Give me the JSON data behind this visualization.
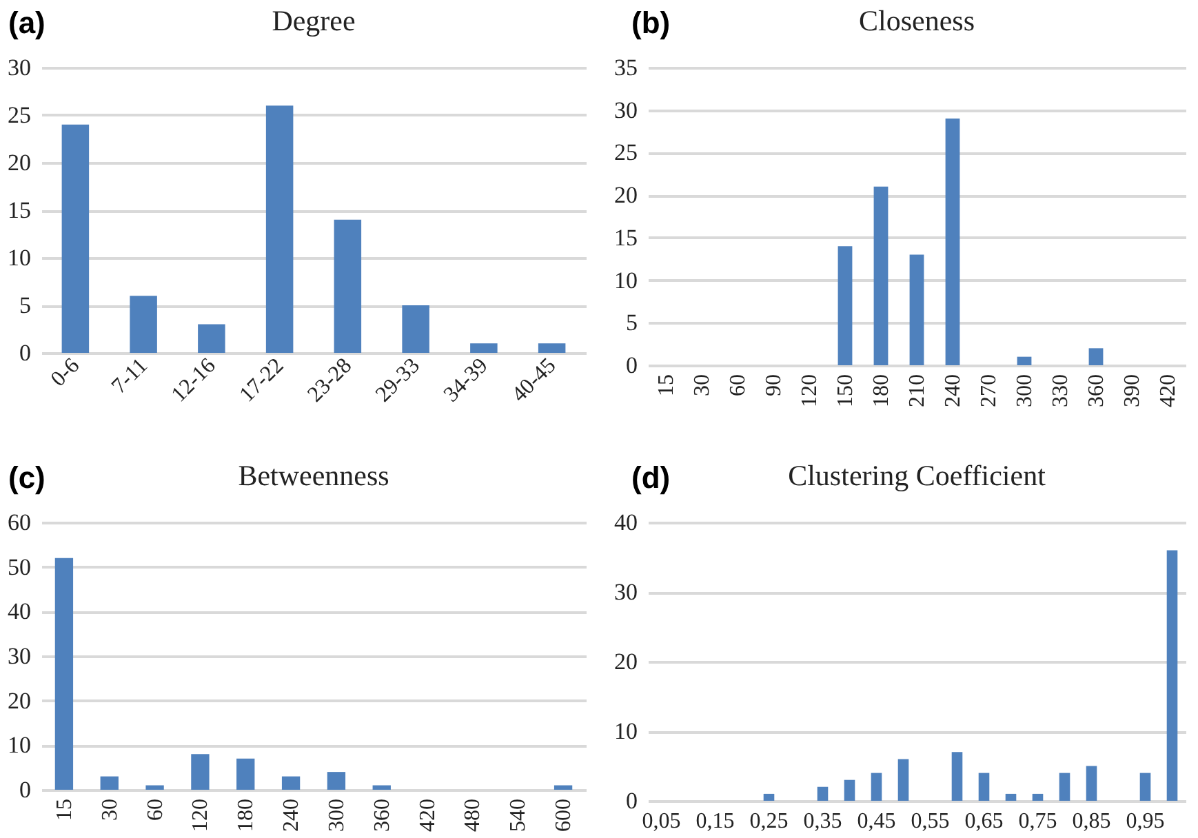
{
  "chart_data": [
    {
      "type": "bar",
      "title": "Degree",
      "annotations": [
        "(a)"
      ],
      "categories": [
        "0-6",
        "7-11",
        "12-16",
        "17-22",
        "23-28",
        "29-33",
        "34-39",
        "40-45"
      ],
      "values": [
        24,
        6,
        3,
        26,
        14,
        5,
        1,
        1
      ],
      "color": "#4f81bd",
      "ylim": [
        0,
        30
      ],
      "yticks": [
        0,
        5,
        10,
        15,
        20,
        25,
        30
      ],
      "grid": "y"
    },
    {
      "type": "bar",
      "title": "Closeness",
      "annotations": [
        "(b)"
      ],
      "categories": [
        "15",
        "30",
        "60",
        "90",
        "120",
        "150",
        "180",
        "210",
        "240",
        "270",
        "300",
        "330",
        "360",
        "390",
        "420"
      ],
      "values": [
        0,
        0,
        0,
        0,
        0,
        14,
        21,
        13,
        29,
        0,
        1,
        0,
        2,
        0,
        0
      ],
      "color": "#4f81bd",
      "ylim": [
        0,
        35
      ],
      "yticks": [
        0,
        5,
        10,
        15,
        20,
        25,
        30,
        35
      ],
      "grid": "y"
    },
    {
      "type": "bar",
      "title": "Betweenness",
      "annotations": [
        "(c)"
      ],
      "categories": [
        "15",
        "30",
        "60",
        "120",
        "180",
        "240",
        "300",
        "360",
        "420",
        "480",
        "540",
        "600"
      ],
      "values": [
        52,
        3,
        1,
        8,
        7,
        3,
        4,
        1,
        0,
        0,
        0,
        1
      ],
      "color": "#4f81bd",
      "ylim": [
        0,
        60
      ],
      "yticks": [
        0,
        10,
        20,
        30,
        40,
        50,
        60
      ],
      "grid": "y"
    },
    {
      "type": "bar",
      "title": "Clustering Coefficient",
      "annotations": [
        "(d)"
      ],
      "categories": [
        "0,05",
        null,
        "0,15",
        null,
        "0,25",
        null,
        "0,35",
        null,
        "0,45",
        null,
        "0,55",
        null,
        "0,65",
        null,
        "0,75",
        null,
        "0,85",
        null,
        "0,95",
        null
      ],
      "values": [
        0,
        0,
        0,
        0,
        1,
        0,
        2,
        3,
        4,
        6,
        0,
        7,
        4,
        1,
        1,
        4,
        5,
        0,
        4,
        36
      ],
      "color": "#4f81bd",
      "ylim": [
        0,
        40
      ],
      "yticks": [
        0,
        10,
        20,
        30,
        40
      ],
      "grid": "y"
    }
  ]
}
